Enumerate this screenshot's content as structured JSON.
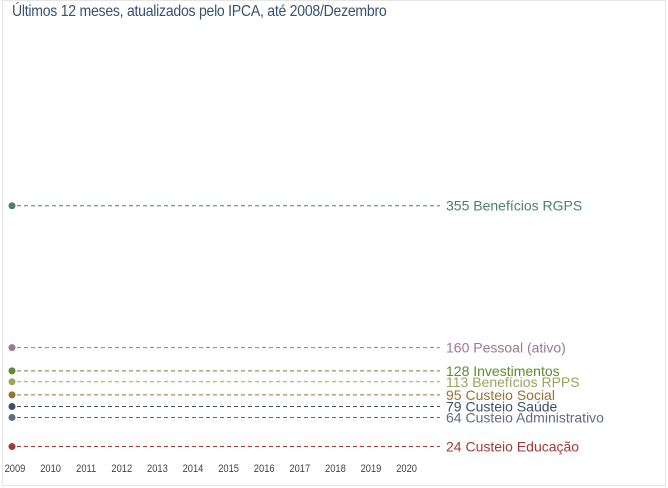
{
  "subtitle": "Últimos 12 meses, atualizados pelo IPCA, até 2008/Dezembro",
  "chart_data": {
    "type": "line",
    "title": "",
    "subtitle": "Últimos 12 meses, atualizados pelo IPCA, até 2008/Dezembro",
    "xlabel": "",
    "ylabel": "",
    "x_ticks": [
      "2009",
      "2010",
      "2011",
      "2012",
      "2013",
      "2014",
      "2015",
      "2016",
      "2017",
      "2018",
      "2019",
      "2020"
    ],
    "ylim": [
      0,
      600
    ],
    "grid": false,
    "series": [
      {
        "name": "Benefícios RGPS",
        "label": "355 Benefícios RGPS",
        "x": "2009",
        "value": 355,
        "color": "#4e7d6d"
      },
      {
        "name": "Pessoal (ativo)",
        "label": "160 Pessoal (ativo)",
        "x": "2009",
        "value": 160,
        "color": "#a07790"
      },
      {
        "name": "Investimentos",
        "label": "128 Investimentos",
        "x": "2009",
        "value": 128,
        "color": "#5d8a2c"
      },
      {
        "name": "Benefícios RPPS",
        "label": "113 Benefícios RPPS",
        "x": "2009",
        "value": 113,
        "color": "#9aa55e"
      },
      {
        "name": "Custeio Social",
        "label": "95 Custeio Social",
        "x": "2009",
        "value": 95,
        "color": "#9a7033"
      },
      {
        "name": "Custeio Saúde",
        "label": "79 Custeio Saúde",
        "x": "2009",
        "value": 79,
        "color": "#3b4e6b"
      },
      {
        "name": "Custeio Administrativo",
        "label": "64 Custeio Administrativo",
        "x": "2009",
        "value": 64,
        "color": "#636b80"
      },
      {
        "name": "Custeio Educação",
        "label": "24 Custeio Educação",
        "x": "2009",
        "value": 24,
        "color": "#a33838"
      }
    ]
  }
}
